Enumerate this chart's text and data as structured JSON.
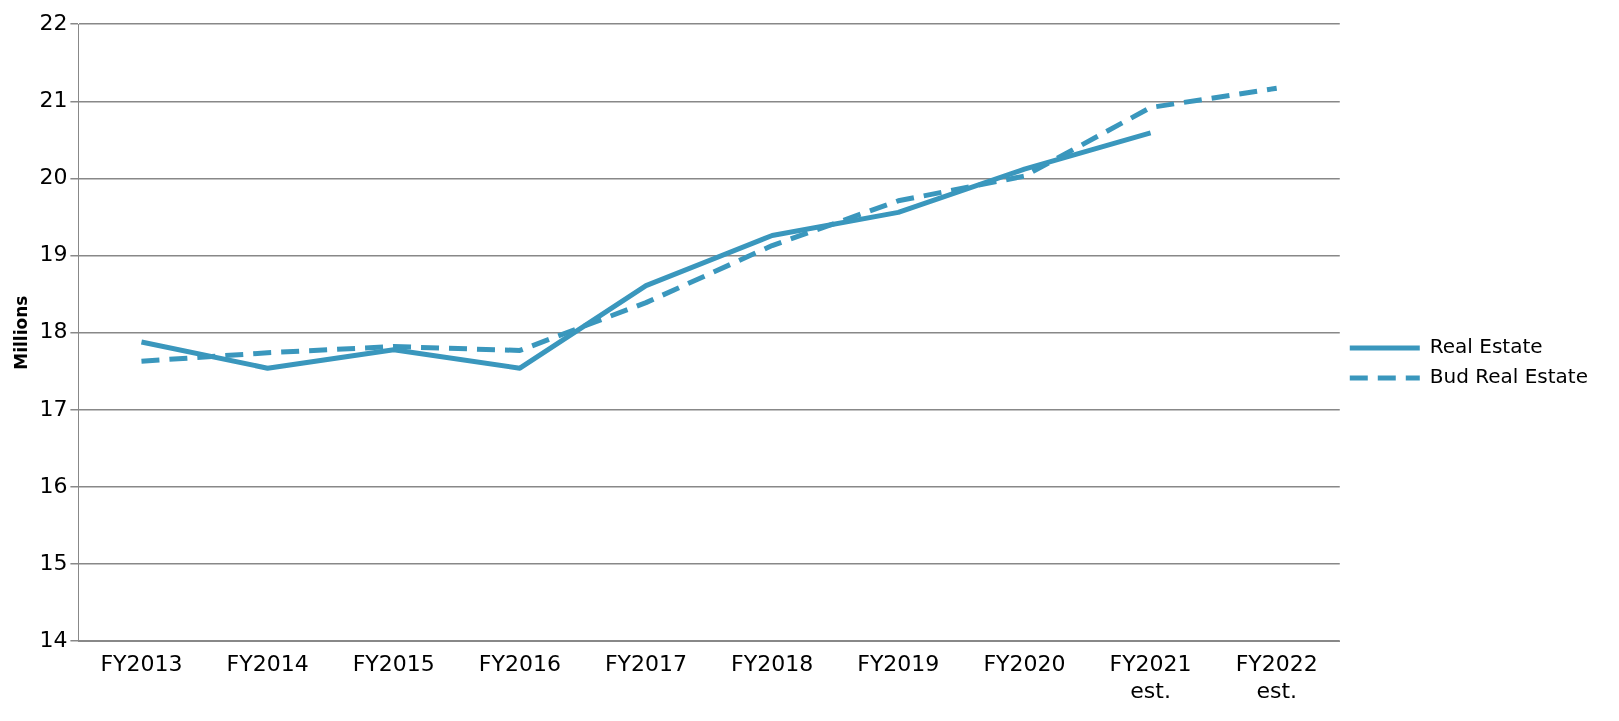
{
  "chart_data": {
    "type": "line",
    "ylabel": "Millions",
    "categories": [
      "FY2013",
      "FY2014",
      "FY2015",
      "FY2016",
      "FY2017",
      "FY2018",
      "FY2019",
      "FY2020",
      "FY2021 est.",
      "FY2022 est."
    ],
    "series": [
      {
        "name": "Real Estate",
        "color": "#3a97bd",
        "line_style": "solid",
        "values": [
          17.88,
          17.54,
          17.78,
          17.54,
          18.61,
          19.26,
          19.56,
          20.12,
          20.59,
          null
        ]
      },
      {
        "name": "Bud Real Estate",
        "color": "#3a97bd",
        "line_style": "dashed",
        "values": [
          17.63,
          17.74,
          17.82,
          17.77,
          18.39,
          19.13,
          19.71,
          20.03,
          20.92,
          21.17
        ]
      }
    ],
    "ylim": [
      14,
      22
    ],
    "yticks": [
      14,
      15,
      16,
      17,
      18,
      19,
      20,
      21,
      22
    ],
    "grid": "y",
    "legend": "right",
    "marker": "none"
  }
}
